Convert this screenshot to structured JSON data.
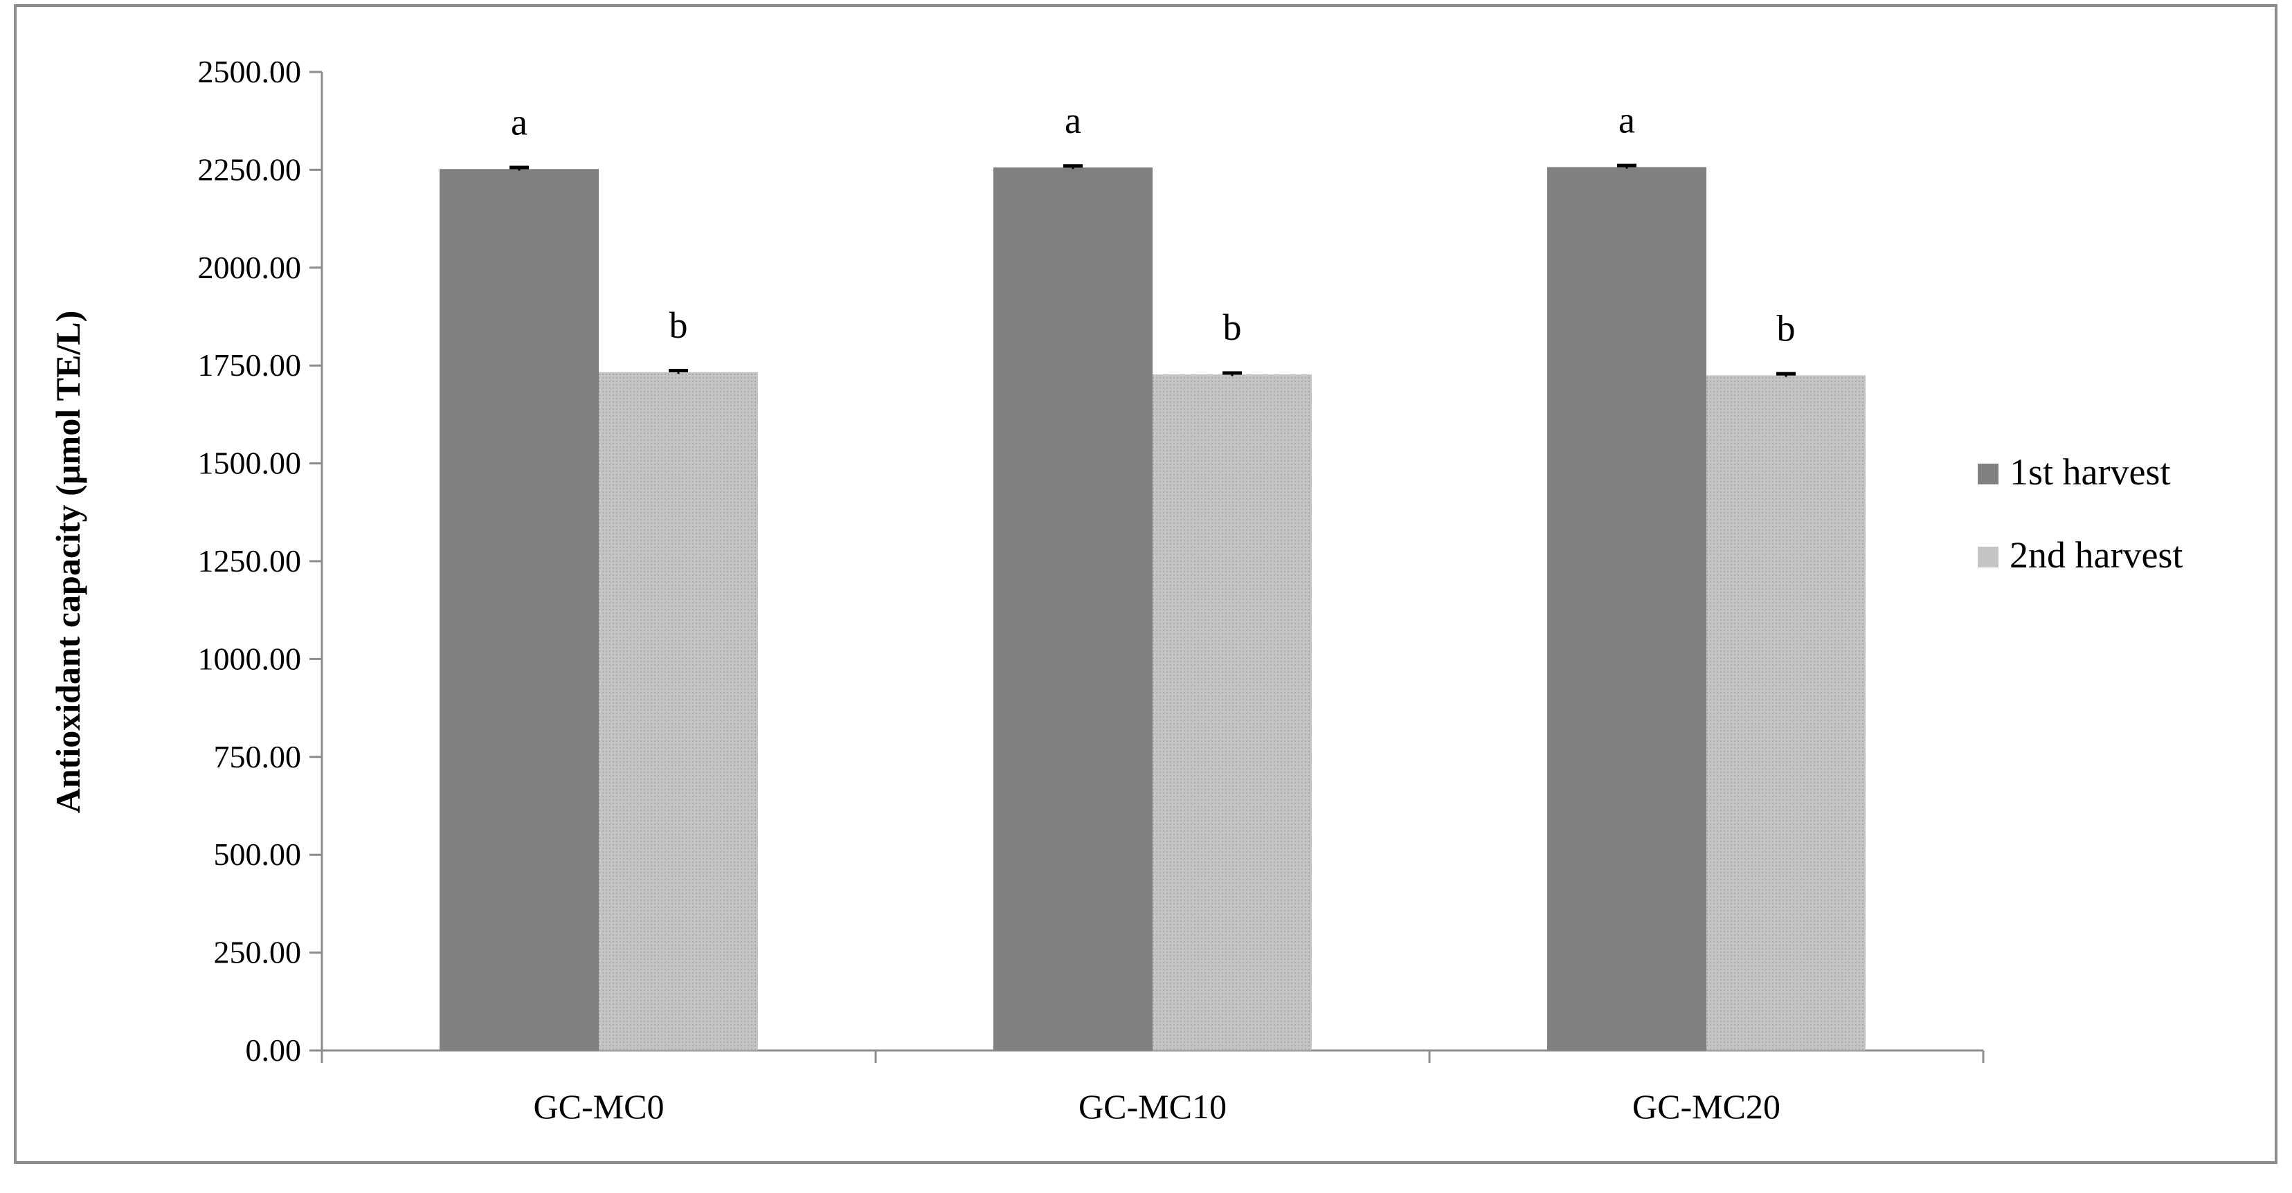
{
  "chart_data": {
    "type": "bar",
    "ylabel": "Antioxidant capacity (µmol TE/L)",
    "xlabel": "",
    "categories": [
      "GC-MC0",
      "GC-MC10",
      "GC-MC20"
    ],
    "ylim": [
      0,
      2500
    ],
    "yticks": [
      "0.00",
      "250.00",
      "500.00",
      "750.00",
      "1000.00",
      "1250.00",
      "1500.00",
      "1750.00",
      "2000.00",
      "2250.00",
      "2500.00"
    ],
    "grid": false,
    "legend_position": "right",
    "series": [
      {
        "name": "1st harvest",
        "color": "#808080",
        "values": [
          2252,
          2256,
          2257
        ],
        "errors": [
          4,
          4,
          4
        ],
        "letters": [
          "a",
          "a",
          "a"
        ]
      },
      {
        "name": "2nd harvest",
        "color": "#c4c4c4",
        "values": [
          1733,
          1727,
          1725
        ],
        "errors": [
          4,
          4,
          4
        ],
        "letters": [
          "b",
          "b",
          "b"
        ]
      }
    ]
  }
}
